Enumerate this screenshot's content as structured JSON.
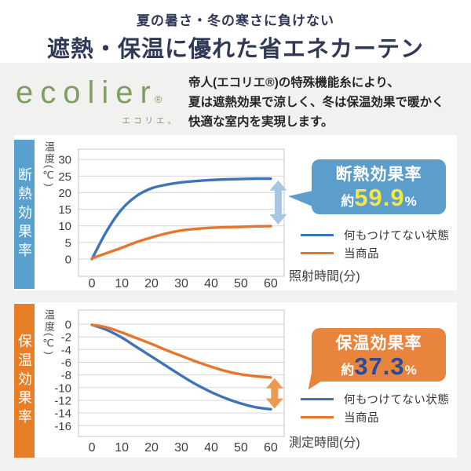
{
  "colors": {
    "brand_navy": "#303a57",
    "brand_green": "#7f9e63",
    "page_bg": "#f1f1ef",
    "card_bg": "#ffffff"
  },
  "header": {
    "subtitle": "夏の暑さ・冬の寒さに負けない",
    "title": "遮熱・保温に優れた省エネカーテン"
  },
  "intro": {
    "logo_text": "ecolier",
    "logo_reg": "®",
    "logo_sub": "エコリエ。",
    "description_lines": [
      "帝人(エコリエ®)の特殊機能糸により、",
      "夏は遮熱効果で涼しく、冬は保温効果で暖かく",
      "快適な室内を実現します。"
    ]
  },
  "chart_data": [
    {
      "type": "line",
      "section_label": "断熱効果率",
      "section_color": "#58a0cd",
      "ylabel": "温度(℃)",
      "xlabel": "照射時間(分)",
      "x_ticks": [
        0,
        10,
        20,
        30,
        40,
        50,
        60
      ],
      "y_ticks": [
        30,
        25,
        20,
        15,
        10,
        5,
        0
      ],
      "xlim": [
        -4.5,
        64.5
      ],
      "ylim": [
        -5.2,
        33.1
      ],
      "grid": true,
      "x": [
        0,
        5,
        10,
        15,
        20,
        25,
        30,
        35,
        40,
        45,
        50,
        55,
        60
      ],
      "series": [
        {
          "name": "何もつけてない状態",
          "color": "#3f73b8",
          "values": [
            0,
            8.5,
            15,
            19,
            21.3,
            22.4,
            23.1,
            23.5,
            23.8,
            24,
            24.1,
            24.2,
            24.2
          ]
        },
        {
          "name": "当商品",
          "color": "#e6762e",
          "values": [
            0.2,
            1.8,
            3.4,
            5.1,
            6.5,
            7.7,
            8.6,
            9.1,
            9.4,
            9.6,
            9.7,
            9.85,
            9.9
          ]
        }
      ],
      "arrow": {
        "x": 62.5,
        "from": 23.7,
        "to": 10.4,
        "color": "#a7c6e2"
      },
      "badge": {
        "line1": "断熱効果率",
        "prefix": "約",
        "value": "59.9",
        "suffix": "%",
        "bg": "#5b9ecb",
        "value_color": "#f2e93f"
      },
      "legend": [
        {
          "label": "何もつけてない状態",
          "color": "#3f73b8"
        },
        {
          "label": "当商品",
          "color": "#e6762e"
        }
      ]
    },
    {
      "type": "line",
      "section_label": "保温効果率",
      "section_color": "#e87e26",
      "ylabel": "温度(℃)",
      "xlabel": "測定時間(分)",
      "x_ticks": [
        0,
        10,
        20,
        30,
        40,
        50,
        60
      ],
      "y_ticks": [
        0,
        -2,
        -4,
        -6,
        -8,
        -10,
        -12,
        -14,
        -16
      ],
      "xlim": [
        -4.5,
        64.5
      ],
      "ylim": [
        -17.7,
        2.23
      ],
      "grid": true,
      "x": [
        0,
        5,
        10,
        15,
        20,
        25,
        30,
        35,
        40,
        45,
        50,
        55,
        60
      ],
      "series": [
        {
          "name": "何もつけてない状態",
          "color": "#3f73b8",
          "values": [
            -0.1,
            -0.9,
            -2.1,
            -3.6,
            -5.1,
            -6.6,
            -8.1,
            -9.5,
            -10.7,
            -11.7,
            -12.5,
            -13.1,
            -13.4
          ]
        },
        {
          "name": "当商品",
          "color": "#e6762e",
          "values": [
            -0.1,
            -0.5,
            -1.3,
            -2.2,
            -3.1,
            -4.1,
            -5.0,
            -5.9,
            -6.7,
            -7.4,
            -7.9,
            -8.2,
            -8.4
          ]
        }
      ],
      "arrow": {
        "x": 61.3,
        "from": -8.5,
        "to": -13.3,
        "color": "#ec9a52"
      },
      "badge": {
        "line1": "保温効果率",
        "prefix": "約",
        "value": "37.3",
        "suffix": "%",
        "bg": "#e8843c",
        "value_color": "#2b4a9b"
      },
      "legend": [
        {
          "label": "何もつけてない状態",
          "color": "#3f73b8"
        },
        {
          "label": "当商品",
          "color": "#e6762e"
        }
      ]
    }
  ]
}
